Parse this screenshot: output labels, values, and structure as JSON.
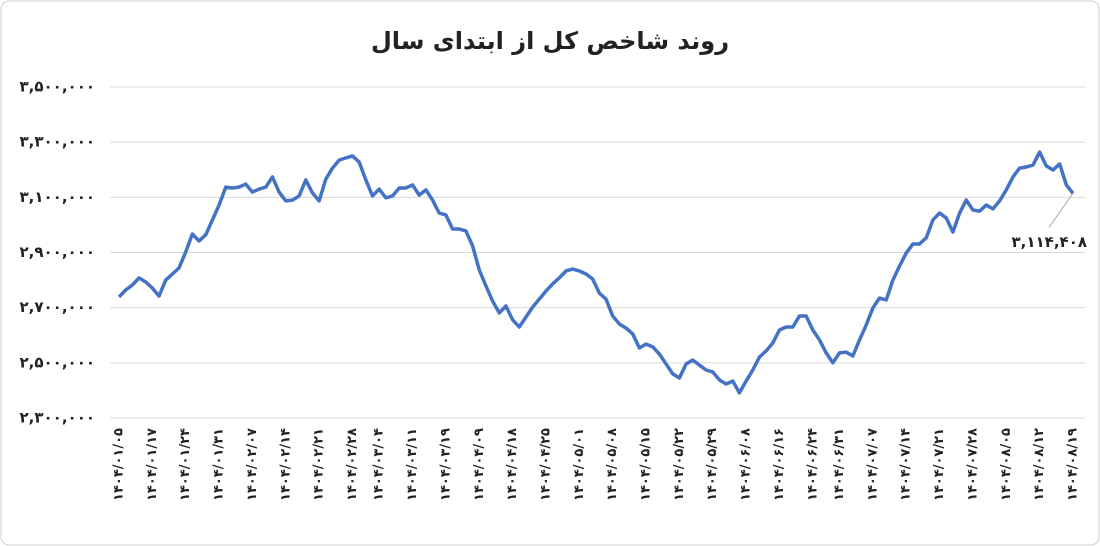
{
  "chart_data": {
    "type": "line",
    "title": "روند شاخص کل از ابتدای سال",
    "categories": [
      "۱۴۰۴/۰۱/۰۵",
      null,
      null,
      null,
      null,
      "۱۴۰۴/۰۱/۱۷",
      null,
      null,
      null,
      null,
      "۱۴۰۴/۰۱/۲۴",
      null,
      null,
      null,
      null,
      "۱۴۰۴/۰۱/۳۱",
      null,
      null,
      null,
      null,
      "۱۴۰۴/۰۲/۰۷",
      null,
      null,
      null,
      null,
      "۱۴۰۴/۰۲/۱۴",
      null,
      null,
      null,
      null,
      "۱۴۰۴/۰۲/۲۱",
      null,
      null,
      null,
      null,
      "۱۴۰۴/۰۲/۲۸",
      null,
      null,
      null,
      "۱۴۰۴/۰۳/۰۴",
      null,
      null,
      null,
      null,
      "۱۴۰۴/۰۳/۱۱",
      null,
      null,
      null,
      null,
      "۱۴۰۴/۰۳/۱۹",
      null,
      null,
      null,
      null,
      "۱۴۰۴/۰۴/۰۹",
      null,
      null,
      null,
      null,
      "۱۴۰۴/۰۴/۱۸",
      null,
      null,
      null,
      null,
      "۱۴۰۴/۰۴/۲۵",
      null,
      null,
      null,
      null,
      "۱۴۰۴/۰۵/۰۱",
      null,
      null,
      null,
      null,
      "۱۴۰۴/۰۵/۰۸",
      null,
      null,
      null,
      null,
      "۱۴۰۴/۰۵/۱۵",
      null,
      null,
      null,
      null,
      "۱۴۰۴/۰۵/۲۲",
      null,
      null,
      null,
      null,
      "۱۴۰۴/۰۵/۲۹",
      null,
      null,
      null,
      null,
      "۱۴۰۴/۰۶/۰۸",
      null,
      null,
      null,
      null,
      "۱۴۰۴/۰۶/۱۶",
      null,
      null,
      null,
      null,
      "۱۴۰۴/۰۶/۲۴",
      null,
      null,
      null,
      "۱۴۰۴/۰۶/۳۱",
      null,
      null,
      null,
      null,
      "۱۴۰۴/۰۷/۰۷",
      null,
      null,
      null,
      null,
      "۱۴۰۴/۰۷/۱۴",
      null,
      null,
      null,
      null,
      "۱۴۰۴/۰۷/۲۱",
      null,
      null,
      null,
      null,
      "۱۴۰۴/۰۷/۲۸",
      null,
      null,
      null,
      null,
      "۱۴۰۴/۰۸/۰۵",
      null,
      null,
      null,
      null,
      "۱۴۰۴/۰۸/۱۲",
      null,
      null,
      null,
      null,
      "۱۴۰۴/۰۸/۱۹"
    ],
    "series": [
      {
        "color": "#4472c4",
        "values": [
          2739000,
          2764000,
          2782000,
          2808000,
          2793000,
          2771000,
          2742000,
          2800000,
          2822000,
          2844000,
          2902000,
          2967000,
          2942000,
          2964000,
          3018000,
          3072000,
          3137000,
          3134000,
          3137000,
          3148000,
          3119000,
          3130000,
          3137000,
          3174000,
          3119000,
          3087000,
          3090000,
          3105000,
          3163000,
          3116000,
          3087000,
          3166000,
          3206000,
          3235000,
          3243000,
          3250000,
          3228000,
          3163000,
          3105000,
          3130000,
          3098000,
          3105000,
          3134000,
          3134000,
          3145000,
          3108000,
          3127000,
          3090000,
          3043000,
          3036000,
          2985000,
          2985000,
          2978000,
          2924000,
          2837000,
          2779000,
          2724000,
          2681000,
          2706000,
          2656000,
          2630000,
          2666000,
          2702000,
          2731000,
          2760000,
          2786000,
          2808000,
          2833000,
          2840000,
          2833000,
          2822000,
          2804000,
          2753000,
          2731000,
          2670000,
          2641000,
          2626000,
          2605000,
          2554000,
          2568000,
          2558000,
          2532000,
          2496000,
          2460000,
          2445000,
          2496000,
          2510000,
          2492000,
          2474000,
          2467000,
          2438000,
          2423000,
          2434000,
          2391000,
          2434000,
          2474000,
          2521000,
          2543000,
          2572000,
          2619000,
          2630000,
          2630000,
          2670000,
          2670000,
          2619000,
          2583000,
          2536000,
          2500000,
          2536000,
          2539000,
          2525000,
          2583000,
          2637000,
          2699000,
          2735000,
          2728000,
          2800000,
          2851000,
          2898000,
          2931000,
          2931000,
          2953000,
          3018000,
          3043000,
          3025000,
          2974000,
          3043000,
          3090000,
          3054000,
          3050000,
          3072000,
          3058000,
          3087000,
          3127000,
          3174000,
          3206000,
          3210000,
          3217000,
          3264000,
          3214000,
          3199000,
          3221000,
          3145000,
          3114408
        ]
      }
    ],
    "last_value_label": "۳,۱۱۴,۴۰۸",
    "ylim": [
      2300000,
      3500000
    ],
    "yticks": [
      {
        "value": 2300000,
        "label": "۲,۳۰۰,۰۰۰"
      },
      {
        "value": 2500000,
        "label": "۲,۵۰۰,۰۰۰"
      },
      {
        "value": 2700000,
        "label": "۲,۷۰۰,۰۰۰"
      },
      {
        "value": 2900000,
        "label": "۲,۹۰۰,۰۰۰"
      },
      {
        "value": 3100000,
        "label": "۳,۱۰۰,۰۰۰"
      },
      {
        "value": 3300000,
        "label": "۳,۳۰۰,۰۰۰"
      },
      {
        "value": 3500000,
        "label": "۳,۵۰۰,۰۰۰"
      }
    ],
    "grid": true
  }
}
